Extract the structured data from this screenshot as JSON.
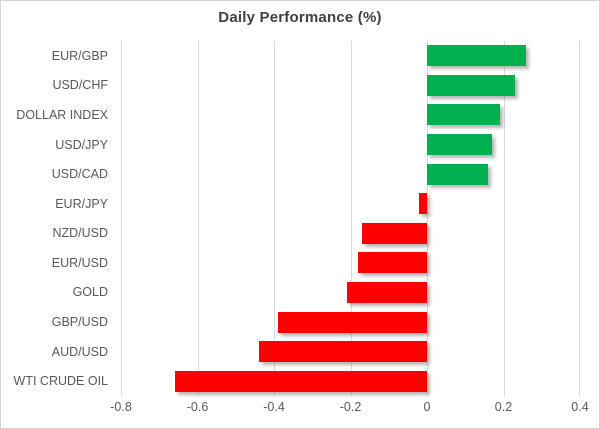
{
  "chart_data": {
    "type": "bar",
    "orientation": "horizontal",
    "title": "Daily Performance (%)",
    "categories": [
      "EUR/GBP",
      "USD/CHF",
      "DOLLAR INDEX",
      "USD/JPY",
      "USD/CAD",
      "EUR/JPY",
      "NZD/USD",
      "EUR/USD",
      "GOLD",
      "GBP/USD",
      "AUD/USD",
      "WTI CRUDE OIL"
    ],
    "values": [
      0.26,
      0.23,
      0.19,
      0.17,
      0.16,
      -0.02,
      -0.17,
      -0.18,
      -0.21,
      -0.39,
      -0.44,
      -0.66
    ],
    "xlim": [
      -0.8,
      0.4
    ],
    "x_tick_labels": [
      "-0.8",
      "-0.6",
      "-0.4",
      "-0.2",
      "0",
      "0.2",
      "0.4"
    ],
    "x_tick_values": [
      -0.8,
      -0.6,
      -0.4,
      -0.2,
      0,
      0.2,
      0.4
    ],
    "grid": true,
    "legend": "none",
    "colors": {
      "positive": "#00b050",
      "negative": "#ff0000",
      "gridline": "#d9d9d9",
      "axis_text": "#595959",
      "title_text": "#404040"
    }
  }
}
